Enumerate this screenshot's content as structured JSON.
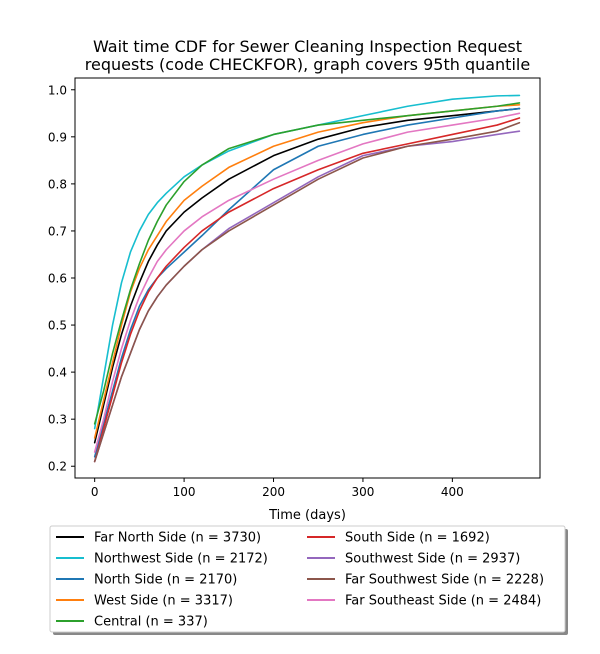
{
  "chart_data": {
    "type": "line",
    "title_lines": [
      "Wait time CDF for Sewer Cleaning Inspection Request",
      "requests (code CHECKFOR), graph covers 95th quantile"
    ],
    "xlabel": "Time (days)",
    "ylabel": "",
    "xlim": [
      -22,
      498
    ],
    "ylim": [
      0.175,
      1.025
    ],
    "xticks": [
      0,
      100,
      200,
      300,
      400
    ],
    "yticks": [
      0.2,
      0.3,
      0.4,
      0.5,
      0.6,
      0.7,
      0.8,
      0.9,
      1.0
    ],
    "grid": false,
    "legend_position": "below plot, two columns",
    "series": [
      {
        "name": "Far North Side (n = 3730)",
        "color": "#000000",
        "x": [
          0,
          10,
          20,
          30,
          40,
          50,
          60,
          70,
          80,
          100,
          120,
          150,
          200,
          250,
          300,
          350,
          400,
          450,
          475
        ],
        "y": [
          0.25,
          0.33,
          0.41,
          0.48,
          0.54,
          0.59,
          0.635,
          0.67,
          0.7,
          0.74,
          0.77,
          0.81,
          0.86,
          0.895,
          0.92,
          0.935,
          0.945,
          0.955,
          0.96
        ]
      },
      {
        "name": "Northwest Side (n = 2172)",
        "color": "#17becf",
        "x": [
          0,
          10,
          20,
          30,
          40,
          50,
          60,
          70,
          80,
          100,
          120,
          150,
          200,
          250,
          300,
          350,
          400,
          450,
          475
        ],
        "y": [
          0.28,
          0.39,
          0.5,
          0.59,
          0.655,
          0.7,
          0.735,
          0.76,
          0.78,
          0.815,
          0.84,
          0.87,
          0.905,
          0.925,
          0.945,
          0.965,
          0.98,
          0.987,
          0.988
        ]
      },
      {
        "name": "North Side (n = 2170)",
        "color": "#1f77b4",
        "x": [
          0,
          10,
          20,
          30,
          40,
          50,
          60,
          70,
          80,
          100,
          120,
          150,
          200,
          250,
          300,
          350,
          400,
          450,
          475
        ],
        "y": [
          0.22,
          0.29,
          0.36,
          0.43,
          0.49,
          0.54,
          0.575,
          0.6,
          0.62,
          0.655,
          0.69,
          0.745,
          0.83,
          0.88,
          0.905,
          0.925,
          0.94,
          0.955,
          0.96
        ]
      },
      {
        "name": "West Side (n = 3317)",
        "color": "#ff7f0e",
        "x": [
          0,
          10,
          20,
          30,
          40,
          50,
          60,
          70,
          80,
          100,
          120,
          150,
          200,
          250,
          300,
          350,
          400,
          450,
          475
        ],
        "y": [
          0.26,
          0.34,
          0.42,
          0.5,
          0.57,
          0.62,
          0.66,
          0.69,
          0.72,
          0.765,
          0.795,
          0.835,
          0.88,
          0.91,
          0.93,
          0.945,
          0.955,
          0.965,
          0.968
        ]
      },
      {
        "name": "Central (n = 337)",
        "color": "#2ca02c",
        "x": [
          0,
          10,
          20,
          30,
          40,
          50,
          60,
          70,
          80,
          100,
          120,
          150,
          200,
          250,
          300,
          350,
          400,
          450,
          475
        ],
        "y": [
          0.29,
          0.36,
          0.44,
          0.51,
          0.575,
          0.63,
          0.68,
          0.72,
          0.755,
          0.805,
          0.84,
          0.875,
          0.905,
          0.925,
          0.935,
          0.945,
          0.955,
          0.965,
          0.972
        ]
      },
      {
        "name": "South Side (n = 1692)",
        "color": "#d62728",
        "x": [
          0,
          10,
          20,
          30,
          40,
          50,
          60,
          70,
          80,
          100,
          120,
          150,
          200,
          250,
          300,
          350,
          400,
          450,
          475
        ],
        "y": [
          0.21,
          0.28,
          0.35,
          0.42,
          0.48,
          0.53,
          0.57,
          0.6,
          0.625,
          0.665,
          0.7,
          0.74,
          0.79,
          0.83,
          0.865,
          0.885,
          0.905,
          0.925,
          0.94
        ]
      },
      {
        "name": "Southwest Side (n = 2937)",
        "color": "#9467bd",
        "x": [
          0,
          10,
          20,
          30,
          40,
          50,
          60,
          70,
          80,
          100,
          120,
          150,
          200,
          250,
          300,
          350,
          400,
          450,
          475
        ],
        "y": [
          0.21,
          0.27,
          0.33,
          0.39,
          0.44,
          0.49,
          0.53,
          0.56,
          0.585,
          0.625,
          0.66,
          0.705,
          0.76,
          0.815,
          0.86,
          0.88,
          0.89,
          0.905,
          0.912
        ]
      },
      {
        "name": "Far Southwest Side (n = 2228)",
        "color": "#8c564b",
        "x": [
          0,
          10,
          20,
          30,
          40,
          50,
          60,
          70,
          80,
          100,
          120,
          150,
          200,
          250,
          300,
          350,
          400,
          450,
          475
        ],
        "y": [
          0.21,
          0.27,
          0.33,
          0.39,
          0.44,
          0.49,
          0.53,
          0.56,
          0.585,
          0.625,
          0.66,
          0.7,
          0.755,
          0.81,
          0.855,
          0.88,
          0.895,
          0.912,
          0.93
        ]
      },
      {
        "name": "Far Southeast Side (n = 2484)",
        "color": "#e377c2",
        "x": [
          0,
          10,
          20,
          30,
          40,
          50,
          60,
          70,
          80,
          100,
          120,
          150,
          200,
          250,
          300,
          350,
          400,
          450,
          475
        ],
        "y": [
          0.23,
          0.3,
          0.38,
          0.45,
          0.51,
          0.56,
          0.6,
          0.635,
          0.66,
          0.7,
          0.73,
          0.765,
          0.81,
          0.85,
          0.885,
          0.91,
          0.925,
          0.94,
          0.95
        ]
      }
    ]
  }
}
